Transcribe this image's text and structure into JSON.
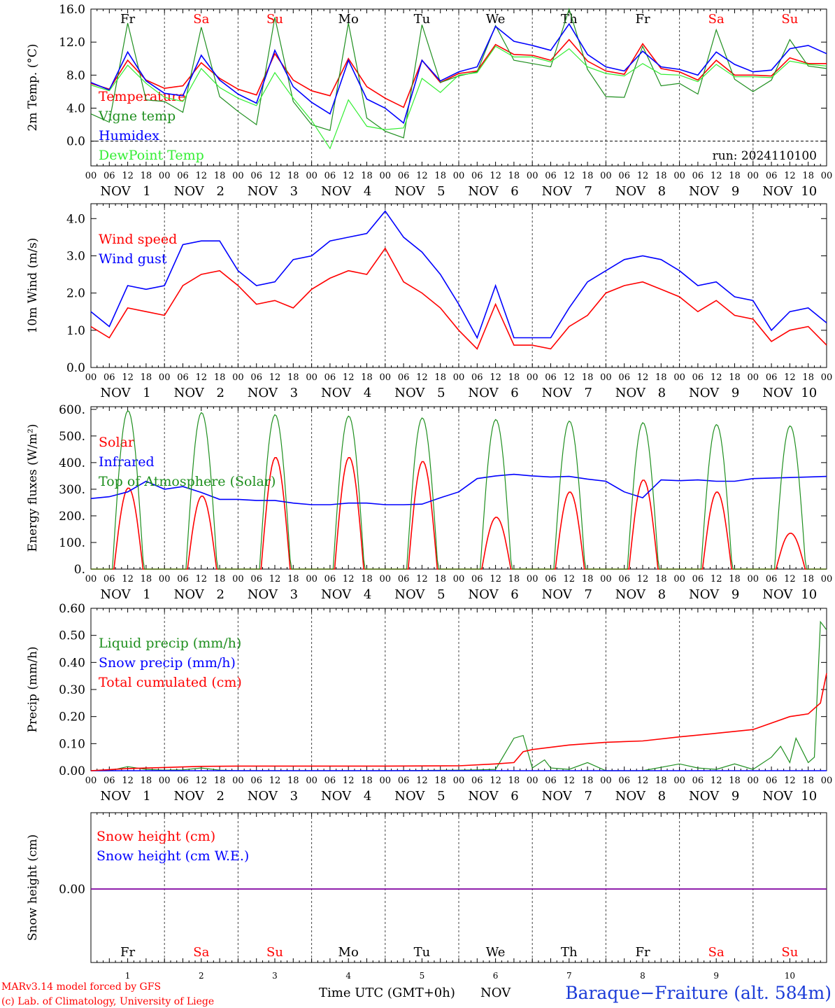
{
  "header": {
    "run_label": "run: 2024110100",
    "footer_model": "MARv3.14 model forced by GFS",
    "footer_lab": "(c) Lab. of Climatology, University of Liege",
    "footer_time": "Time UTC (GMT+0h)",
    "footer_month": "NOV",
    "footer_station": "Baraque−Fraiture (alt. 584m)"
  },
  "colors": {
    "red": "#ff0000",
    "dark_green": "#1f8f1f",
    "blue": "#0000ff",
    "light_green": "#33ee33",
    "purple": "#8000a0",
    "weekend_red": "#ff0000",
    "text": "#000000"
  },
  "days": [
    {
      "dow": "Fr",
      "month": "NOV",
      "date": "1",
      "weekend": false
    },
    {
      "dow": "Sa",
      "month": "NOV",
      "date": "2",
      "weekend": true
    },
    {
      "dow": "Su",
      "month": "NOV",
      "date": "3",
      "weekend": true
    },
    {
      "dow": "Mo",
      "month": "NOV",
      "date": "4",
      "weekend": false
    },
    {
      "dow": "Tu",
      "month": "NOV",
      "date": "5",
      "weekend": false
    },
    {
      "dow": "We",
      "month": "NOV",
      "date": "6",
      "weekend": false
    },
    {
      "dow": "Th",
      "month": "NOV",
      "date": "7",
      "weekend": false
    },
    {
      "dow": "Fr",
      "month": "NOV",
      "date": "8",
      "weekend": false
    },
    {
      "dow": "Sa",
      "month": "NOV",
      "date": "9",
      "weekend": true
    },
    {
      "dow": "Su",
      "month": "NOV",
      "date": "10",
      "weekend": true
    }
  ],
  "hour_ticks": [
    "00",
    "06",
    "12",
    "18"
  ],
  "chart_data": [
    {
      "id": "temperature",
      "type": "line",
      "ylabel": "2m Temp. (°C)",
      "ylim": [
        -3.0,
        16.0
      ],
      "yticks": [
        "0.0",
        "4.0",
        "8.0",
        "12.0",
        "16.0"
      ],
      "ytick_values": [
        0,
        4,
        8,
        12,
        16
      ],
      "dashed_zero": true,
      "x_unit": "hours since NOV 1 00 UTC",
      "legend": "top-left",
      "series": [
        {
          "name": "Temperature",
          "color": "red",
          "x": [
            0,
            6,
            12,
            18,
            24,
            30,
            36,
            42,
            48,
            54,
            60,
            66,
            72,
            78,
            84,
            90,
            96,
            102,
            108,
            114,
            120,
            126,
            132,
            138,
            144,
            150,
            156,
            162,
            168,
            174,
            180,
            186,
            192,
            198,
            204,
            210,
            216,
            222,
            228,
            234,
            240
          ],
          "y": [
            7.0,
            6.3,
            9.8,
            7.4,
            6.4,
            6.7,
            9.5,
            7.6,
            6.3,
            5.6,
            10.6,
            7.4,
            6.1,
            5.5,
            10.0,
            6.6,
            5.2,
            4.1,
            9.8,
            7.1,
            8.2,
            8.5,
            11.7,
            10.5,
            10.4,
            9.8,
            12.3,
            9.7,
            8.5,
            8.1,
            11.8,
            8.8,
            8.4,
            7.4,
            9.8,
            8.0,
            8.0,
            7.9,
            10.1,
            9.4,
            9.4
          ]
        },
        {
          "name": "Vigne temp",
          "color": "dark_green",
          "x": [
            0,
            6,
            12,
            18,
            24,
            30,
            36,
            42,
            48,
            54,
            60,
            66,
            72,
            78,
            84,
            90,
            96,
            102,
            108,
            114,
            120,
            126,
            132,
            138,
            144,
            150,
            156,
            162,
            168,
            174,
            180,
            186,
            192,
            198,
            204,
            210,
            216,
            222,
            228,
            234,
            240
          ],
          "y": [
            3.3,
            2.3,
            14.3,
            5.0,
            4.8,
            3.5,
            13.8,
            5.4,
            3.6,
            2.0,
            15.0,
            4.8,
            2.0,
            1.3,
            14.3,
            2.8,
            1.2,
            0.4,
            14.1,
            7.1,
            7.9,
            8.4,
            14.0,
            9.8,
            9.4,
            9.0,
            16.0,
            8.7,
            5.4,
            5.3,
            11.5,
            6.7,
            7.0,
            5.7,
            13.5,
            7.5,
            6.0,
            7.4,
            12.3,
            9.1,
            8.8
          ]
        },
        {
          "name": "Humidex",
          "color": "blue",
          "x": [
            0,
            6,
            12,
            18,
            24,
            30,
            36,
            42,
            48,
            54,
            60,
            66,
            72,
            78,
            84,
            90,
            96,
            102,
            108,
            114,
            120,
            126,
            132,
            138,
            144,
            150,
            156,
            162,
            168,
            174,
            180,
            186,
            192,
            198,
            204,
            210,
            216,
            222,
            228,
            234,
            240
          ],
          "y": [
            7.1,
            6.2,
            10.8,
            7.3,
            5.8,
            5.5,
            10.4,
            7.4,
            5.7,
            4.6,
            11.0,
            6.6,
            4.7,
            3.3,
            9.8,
            5.1,
            4.0,
            2.2,
            9.8,
            7.3,
            8.4,
            9.0,
            13.9,
            12.1,
            11.6,
            11.0,
            14.2,
            10.5,
            9.0,
            8.5,
            10.9,
            9.0,
            8.7,
            8.0,
            10.8,
            9.3,
            8.4,
            8.6,
            11.2,
            11.6,
            10.6
          ]
        },
        {
          "name": "DewPoint Temp",
          "color": "light_green",
          "x": [
            0,
            6,
            12,
            18,
            24,
            30,
            36,
            42,
            48,
            54,
            60,
            66,
            72,
            78,
            84,
            90,
            96,
            102,
            108,
            114,
            120,
            126,
            132,
            138,
            144,
            150,
            156,
            162,
            168,
            174,
            180,
            186,
            192,
            198,
            204,
            210,
            216,
            222,
            228,
            234,
            240
          ],
          "y": [
            6.8,
            6.1,
            9.2,
            7.0,
            5.3,
            4.8,
            8.8,
            6.5,
            5.2,
            4.3,
            8.3,
            5.2,
            2.5,
            -0.9,
            5.0,
            1.8,
            1.4,
            1.6,
            7.6,
            5.9,
            8.0,
            8.3,
            11.5,
            10.2,
            10.2,
            9.6,
            11.2,
            9.0,
            8.2,
            7.9,
            9.4,
            8.1,
            8.0,
            7.2,
            9.3,
            7.8,
            7.8,
            7.7,
            9.7,
            9.3,
            9.1
          ]
        }
      ]
    },
    {
      "id": "wind",
      "type": "line",
      "ylabel": "10m Wind (m/s)",
      "ylim": [
        0.0,
        4.4
      ],
      "yticks": [
        "0.0",
        "1.0",
        "2.0",
        "3.0",
        "4.0"
      ],
      "ytick_values": [
        0,
        1,
        2,
        3,
        4
      ],
      "x_unit": "hours since NOV 1 00 UTC",
      "legend": "top-left",
      "series": [
        {
          "name": "Wind speed",
          "color": "red",
          "x": [
            0,
            6,
            12,
            18,
            24,
            30,
            36,
            42,
            48,
            54,
            60,
            66,
            72,
            78,
            84,
            90,
            96,
            102,
            108,
            114,
            120,
            126,
            132,
            138,
            144,
            150,
            156,
            162,
            168,
            174,
            180,
            186,
            192,
            198,
            204,
            210,
            216,
            222,
            228,
            234,
            240
          ],
          "y": [
            1.1,
            0.8,
            1.6,
            1.5,
            1.4,
            2.2,
            2.5,
            2.6,
            2.2,
            1.7,
            1.8,
            1.6,
            2.1,
            2.4,
            2.6,
            2.5,
            3.2,
            2.3,
            2.0,
            1.6,
            1.0,
            0.5,
            1.7,
            0.6,
            0.6,
            0.5,
            1.1,
            1.4,
            2.0,
            2.2,
            2.3,
            2.1,
            1.9,
            1.5,
            1.8,
            1.4,
            1.3,
            0.7,
            1.0,
            1.1,
            0.6
          ]
        },
        {
          "name": "Wind gust",
          "color": "blue",
          "x": [
            0,
            6,
            12,
            18,
            24,
            30,
            36,
            42,
            48,
            54,
            60,
            66,
            72,
            78,
            84,
            90,
            96,
            102,
            108,
            114,
            120,
            126,
            132,
            138,
            144,
            150,
            156,
            162,
            168,
            174,
            180,
            186,
            192,
            198,
            204,
            210,
            216,
            222,
            228,
            234,
            240
          ],
          "y": [
            1.5,
            1.1,
            2.2,
            2.1,
            2.2,
            3.3,
            3.4,
            3.4,
            2.6,
            2.2,
            2.3,
            2.9,
            3.0,
            3.4,
            3.5,
            3.6,
            4.2,
            3.5,
            3.1,
            2.5,
            1.7,
            0.8,
            2.2,
            0.8,
            0.8,
            0.8,
            1.6,
            2.3,
            2.6,
            2.9,
            3.0,
            2.9,
            2.6,
            2.2,
            2.3,
            1.9,
            1.8,
            1.0,
            1.5,
            1.6,
            1.2
          ]
        }
      ]
    },
    {
      "id": "energy",
      "type": "line",
      "ylabel": "Energy fluxes (W/m²)",
      "ylim": [
        0,
        610
      ],
      "yticks": [
        "0.",
        "100.",
        "200.",
        "300.",
        "400.",
        "500.",
        "600."
      ],
      "ytick_values": [
        0,
        100,
        200,
        300,
        400,
        500,
        600
      ],
      "x_unit": "hours since NOV 1 00 UTC",
      "legend": "top-left",
      "series": [
        {
          "name": "Solar",
          "color": "red",
          "type": "diurnal",
          "peaks": [
            305,
            275,
            420,
            420,
            405,
            195,
            290,
            335,
            290,
            135
          ],
          "rise_hour": 7.5,
          "set_hour": 17.0
        },
        {
          "name": "Infrared",
          "color": "blue",
          "x": [
            0,
            6,
            12,
            18,
            24,
            30,
            36,
            42,
            48,
            54,
            60,
            66,
            72,
            78,
            84,
            90,
            96,
            102,
            108,
            114,
            120,
            126,
            132,
            138,
            144,
            150,
            156,
            162,
            168,
            174,
            180,
            186,
            192,
            198,
            204,
            210,
            216,
            222,
            228,
            234,
            240
          ],
          "y": [
            265,
            272,
            290,
            330,
            300,
            310,
            288,
            262,
            262,
            258,
            258,
            248,
            242,
            242,
            248,
            248,
            242,
            242,
            244,
            268,
            290,
            340,
            350,
            356,
            350,
            346,
            348,
            338,
            330,
            290,
            268,
            335,
            332,
            335,
            330,
            330,
            340,
            342,
            344,
            346,
            348
          ]
        },
        {
          "name": "Top of Atmosphere (Solar)",
          "color": "dark_green",
          "type": "diurnal",
          "peaks": [
            595,
            588,
            580,
            575,
            568,
            562,
            556,
            550,
            543,
            538
          ],
          "rise_hour": 7.0,
          "set_hour": 17.2
        }
      ]
    },
    {
      "id": "precip",
      "type": "line",
      "ylabel": "Precip (mm/h)",
      "ylim": [
        0.0,
        0.6
      ],
      "yticks": [
        "0.00",
        "0.10",
        "0.20",
        "0.30",
        "0.40",
        "0.50",
        "0.60"
      ],
      "ytick_values": [
        0,
        0.1,
        0.2,
        0.3,
        0.4,
        0.5,
        0.6
      ],
      "x_unit": "hours since NOV 1 00 UTC",
      "legend": "top-left",
      "series": [
        {
          "name": "Liquid precip (mm/h)",
          "color": "dark_green",
          "x": [
            0,
            6,
            12,
            18,
            24,
            30,
            36,
            42,
            48,
            60,
            72,
            96,
            120,
            126,
            132,
            138,
            141,
            144,
            148,
            150,
            156,
            162,
            168,
            180,
            192,
            198,
            204,
            210,
            216,
            222,
            225,
            228,
            230,
            234,
            236,
            238,
            240
          ],
          "y": [
            0,
            0,
            0.015,
            0.005,
            0.002,
            0.003,
            0.01,
            0.002,
            0,
            0,
            0,
            0,
            0.002,
            0.003,
            0.005,
            0.12,
            0.13,
            0.01,
            0.04,
            0.01,
            0.005,
            0.03,
            0,
            0,
            0.025,
            0.01,
            0.005,
            0.025,
            0.005,
            0.05,
            0.09,
            0.03,
            0.12,
            0.03,
            0.05,
            0.55,
            0.52
          ]
        },
        {
          "name": "Snow precip (mm/h)",
          "color": "blue",
          "x": [
            0,
            240
          ],
          "y": [
            0,
            0
          ]
        },
        {
          "name": "Total cumulated (cm)",
          "color": "red",
          "x": [
            0,
            12,
            24,
            36,
            48,
            72,
            96,
            120,
            132,
            138,
            141,
            144,
            156,
            168,
            180,
            192,
            204,
            216,
            228,
            234,
            238,
            240
          ],
          "y": [
            0,
            0.008,
            0.012,
            0.016,
            0.017,
            0.017,
            0.017,
            0.018,
            0.025,
            0.03,
            0.07,
            0.078,
            0.095,
            0.105,
            0.11,
            0.125,
            0.138,
            0.152,
            0.2,
            0.21,
            0.25,
            0.36
          ]
        }
      ]
    },
    {
      "id": "snow",
      "type": "line",
      "ylabel": "Snow height (cm)",
      "yticks": [
        "0.00"
      ],
      "ytick_values": [
        0
      ],
      "x_unit": "hours since NOV 1 00 UTC",
      "legend": "top-left",
      "series": [
        {
          "name": "Snow height (cm)",
          "color": "red",
          "x": [
            0,
            240
          ],
          "y": [
            0,
            0
          ]
        },
        {
          "name": "Snow height (cm W.E.)",
          "color": "blue",
          "x": [
            0,
            240
          ],
          "y": [
            0,
            0
          ]
        }
      ]
    }
  ]
}
